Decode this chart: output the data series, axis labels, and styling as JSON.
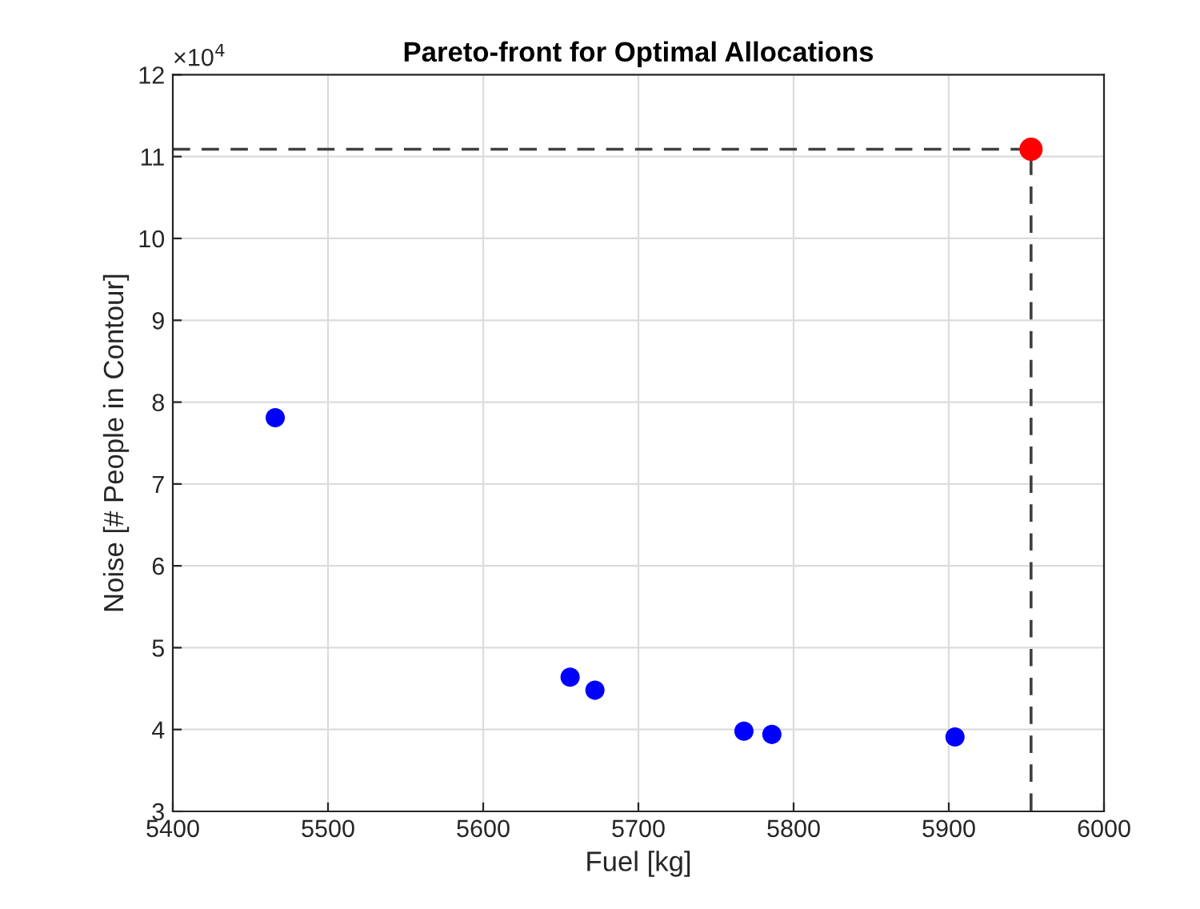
{
  "chart_data": {
    "type": "scatter",
    "title": "Pareto-front for Optimal Allocations",
    "xlabel": "Fuel [kg]",
    "ylabel": "Noise [# People in Contour]",
    "annotations": [
      "×10$^{4}$"
    ],
    "series": [
      {
        "type": "line",
        "x": [
          5400,
          5953,
          5953
        ],
        "values": [
          11.09,
          11.09,
          3
        ],
        "color": "#404040",
        "line_style": "dashed",
        "marker": "none"
      },
      {
        "x": [
          5466,
          5656,
          5672,
          5768,
          5786,
          5904
        ],
        "values": [
          7.81,
          4.64,
          4.48,
          3.98,
          3.94,
          3.91
        ],
        "color": "#0000ff",
        "marker": "circle"
      },
      {
        "x": [
          5953
        ],
        "values": [
          11.09
        ],
        "color": "#ff0000",
        "marker": "circle"
      }
    ],
    "xlim": [
      5400,
      6000
    ],
    "xticks": [
      5400,
      5500,
      5600,
      5700,
      5800,
      5900,
      6000
    ],
    "ylim": [
      3,
      12
    ],
    "yticks": [
      3,
      4,
      5,
      6,
      7,
      8,
      9,
      10,
      11,
      12
    ],
    "grid": true
  }
}
